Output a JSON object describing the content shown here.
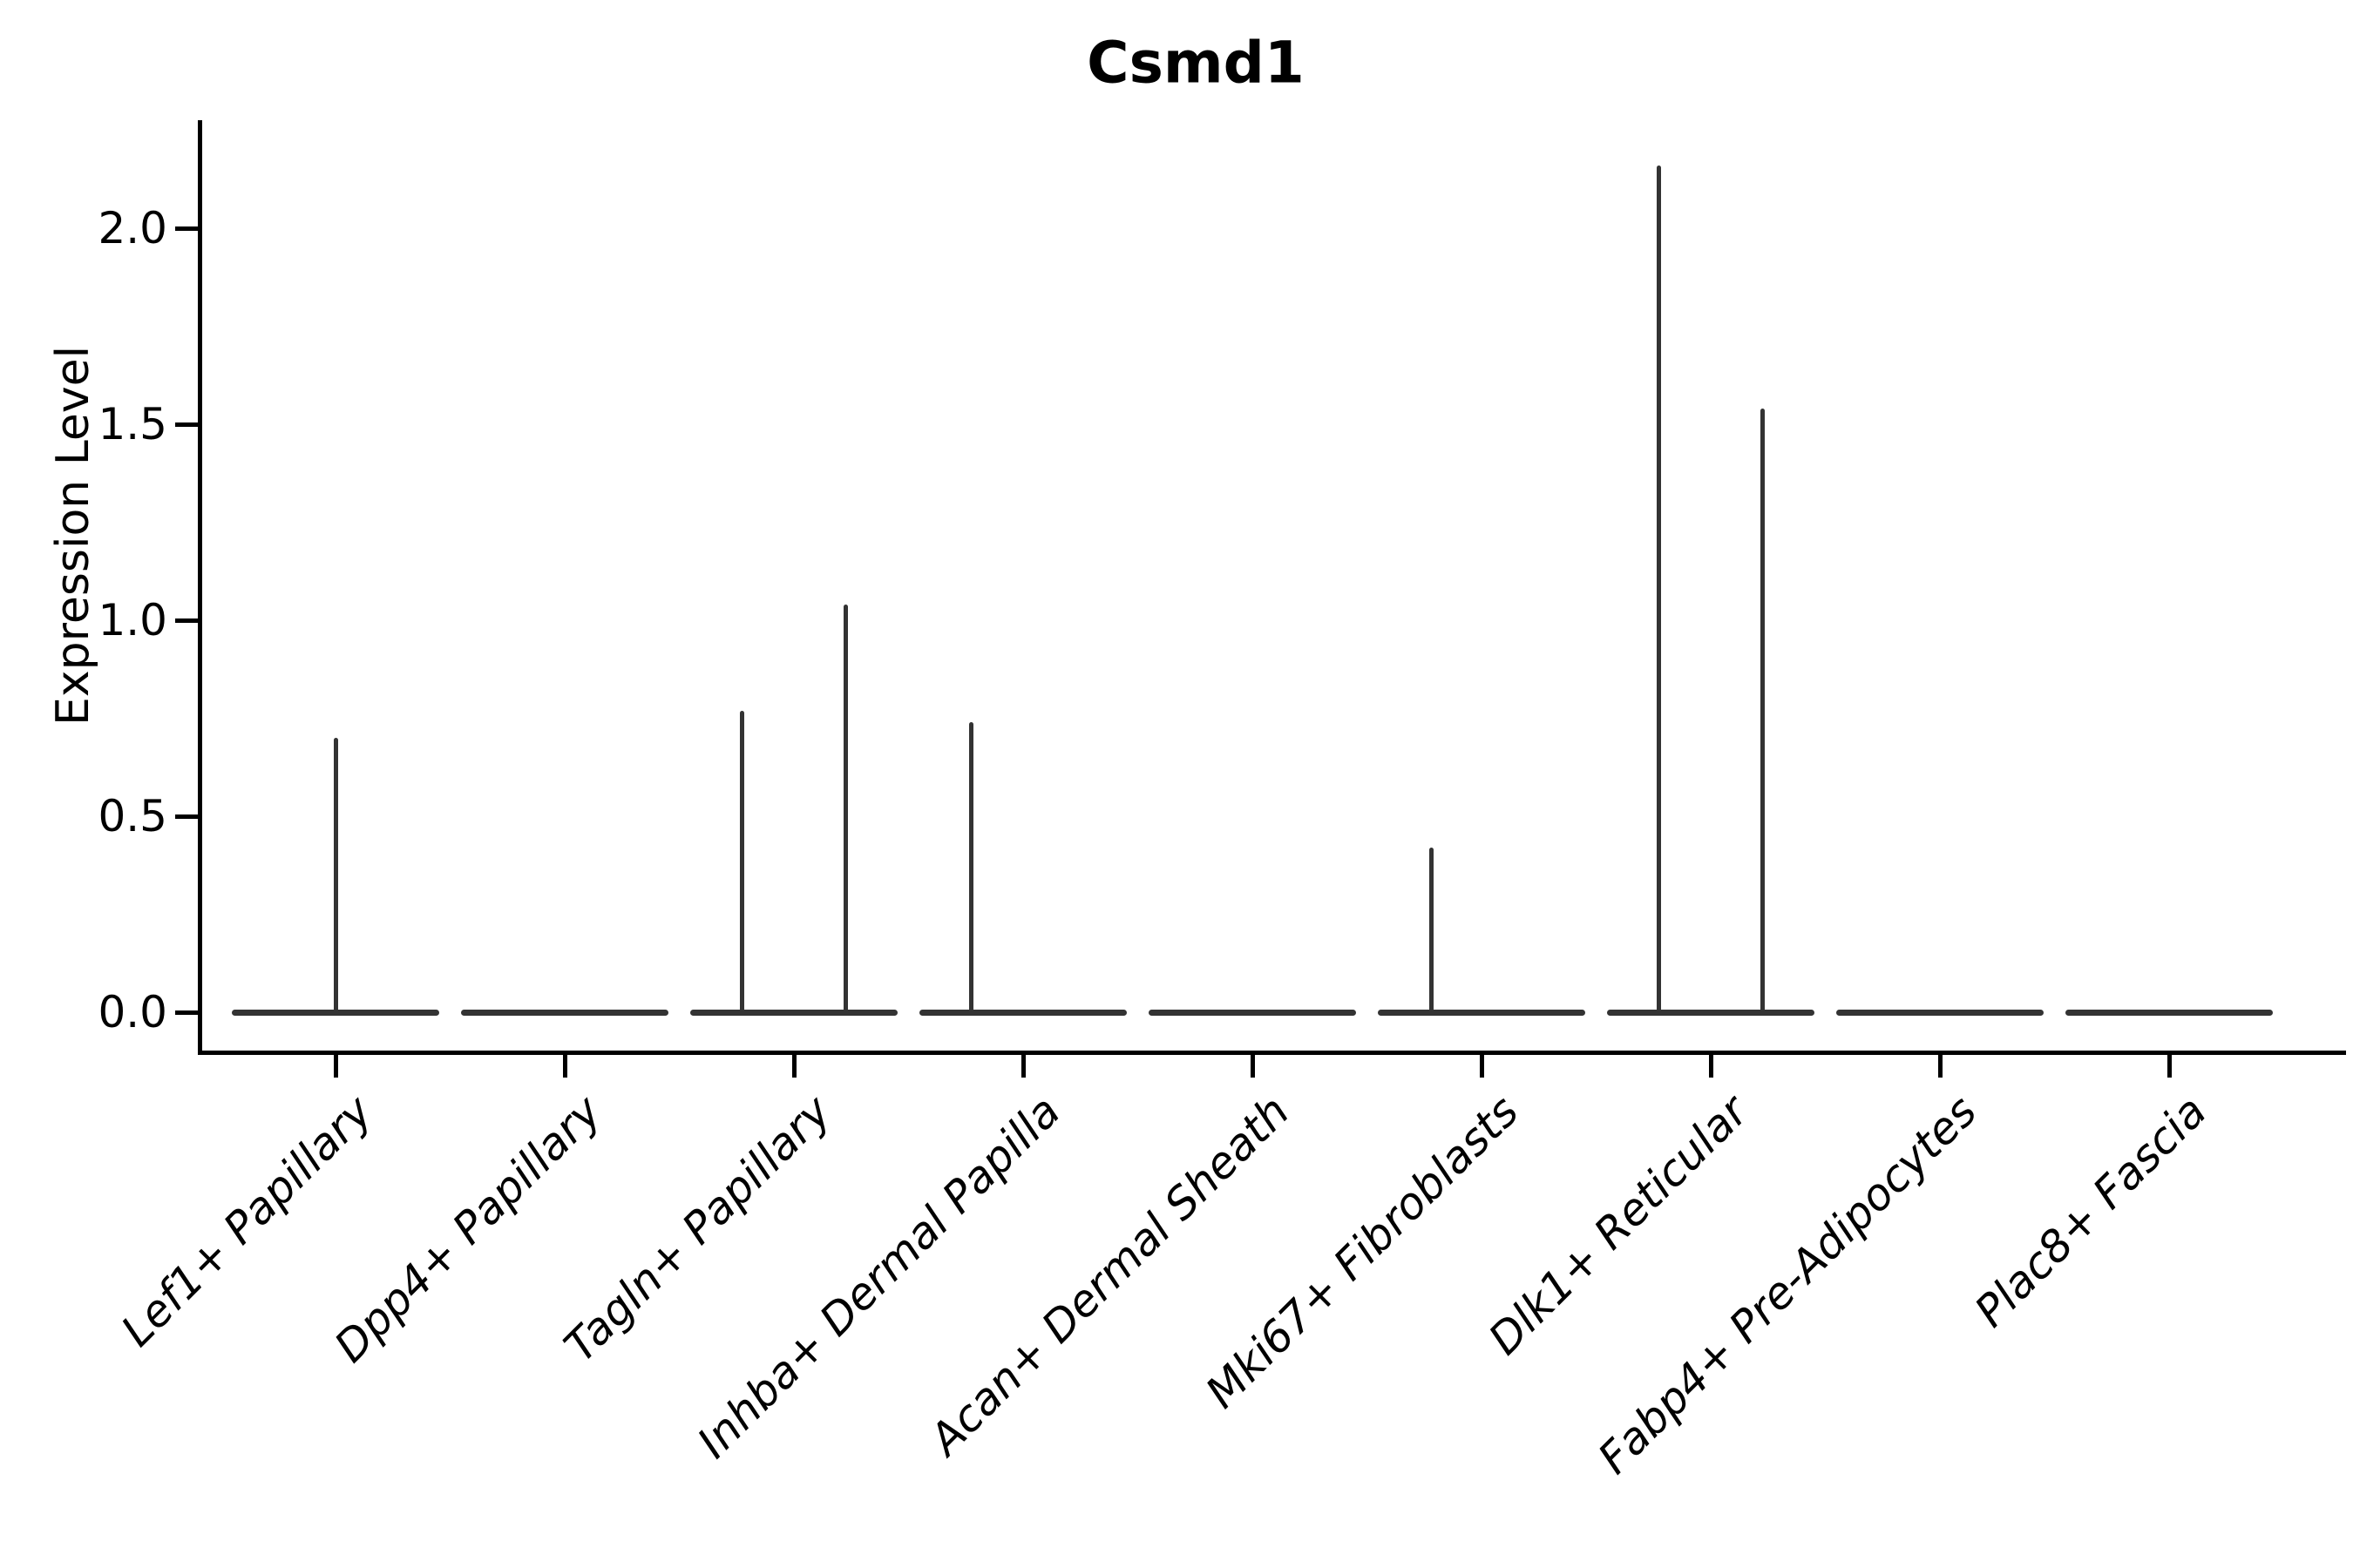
{
  "title": "Csmd1",
  "y_axis": {
    "label": "Expression Level"
  },
  "colors": {
    "violin": "#333333",
    "axis": "#000000",
    "text": "#000000"
  },
  "chart_data": {
    "type": "violin",
    "title": "Csmd1",
    "xlabel": "",
    "ylabel": "Expression Level",
    "yticks": [
      0.0,
      0.5,
      1.0,
      1.5,
      2.0
    ],
    "ytick_labels": [
      "0.0",
      "0.5",
      "1.0",
      "1.5",
      "2.0"
    ],
    "ylim": [
      -0.1,
      2.27
    ],
    "grid": false,
    "legend": false,
    "categories": [
      "Lef1+ Papillary",
      "Dpp4+ Papillary",
      "Tagln+ Papillary",
      "Inhba+ Dermal Papilla",
      "Acan+ Dermal Sheath",
      "Mki67+ Fibroblasts",
      "Dlk1+ Reticular",
      "Fabp4+ Pre-Adipocytes",
      "Plac8+ Fascia"
    ],
    "violins": [
      {
        "category": "Lef1+ Papillary",
        "base_value": 0.0,
        "spikes": [
          {
            "value": 0.7,
            "offset": 0.0
          }
        ]
      },
      {
        "category": "Dpp4+ Papillary",
        "base_value": 0.0,
        "spikes": []
      },
      {
        "category": "Tagln+ Papillary",
        "base_value": 0.0,
        "spikes": [
          {
            "value": 0.77,
            "offset": -0.225
          },
          {
            "value": 1.04,
            "offset": 0.225
          }
        ]
      },
      {
        "category": "Inhba+ Dermal Papilla",
        "base_value": 0.0,
        "spikes": [
          {
            "value": 0.74,
            "offset": -0.225
          }
        ]
      },
      {
        "category": "Acan+ Dermal Sheath",
        "base_value": 0.0,
        "spikes": []
      },
      {
        "category": "Mki67+ Fibroblasts",
        "base_value": 0.0,
        "spikes": [
          {
            "value": 0.42,
            "offset": -0.22
          }
        ]
      },
      {
        "category": "Dlk1+ Reticular",
        "base_value": 0.0,
        "spikes": [
          {
            "value": 2.16,
            "offset": -0.225
          },
          {
            "value": 1.54,
            "offset": 0.228
          }
        ]
      },
      {
        "category": "Fabp4+ Pre-Adipocytes",
        "base_value": 0.0,
        "spikes": []
      },
      {
        "category": "Plac8+ Fascia",
        "base_value": 0.0,
        "spikes": []
      }
    ]
  }
}
